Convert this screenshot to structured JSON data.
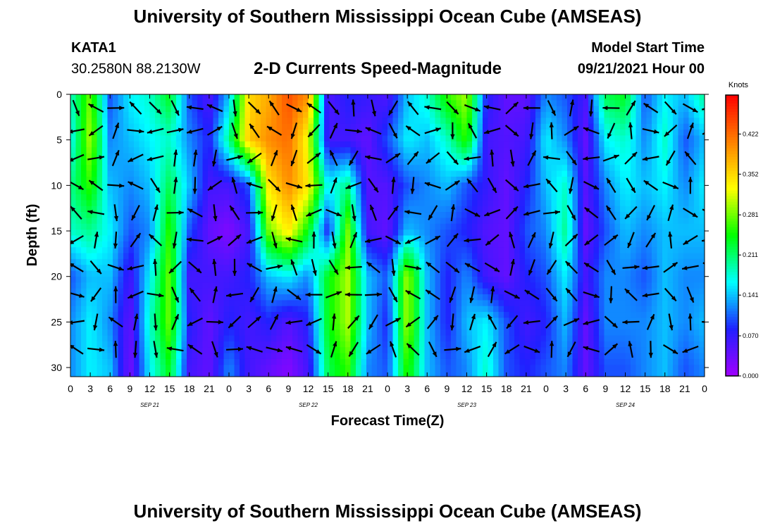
{
  "page": {
    "title_top": "University of Southern Mississippi Ocean Cube (AMSEAS)",
    "title_bottom": "University of Southern Mississippi Ocean Cube (AMSEAS)",
    "station": "KATA1",
    "coords": "30.2580N  88.2130W",
    "chart_title": "2-D Currents Speed-Magnitude",
    "model_start_label": "Model Start Time",
    "model_start_value": "09/21/2021 Hour 00"
  },
  "chart_data": {
    "type": "heatmap",
    "title": "2-D Currents Speed-Magnitude",
    "xlabel": "Forecast Time(Z)",
    "ylabel": "Depth (ft)",
    "x_ticks": [
      "0",
      "3",
      "6",
      "9",
      "12",
      "15",
      "18",
      "21",
      "0",
      "3",
      "6",
      "9",
      "12",
      "15",
      "18",
      "21",
      "0",
      "3",
      "6",
      "9",
      "12",
      "15",
      "18",
      "21",
      "0",
      "3",
      "6",
      "9",
      "12",
      "15",
      "18",
      "21",
      "0"
    ],
    "x_range_hours": [
      0,
      96
    ],
    "date_labels": [
      {
        "label": "SEP 21",
        "hour": 12
      },
      {
        "label": "SEP 22",
        "hour": 36
      },
      {
        "label": "SEP 23",
        "hour": 60
      },
      {
        "label": "SEP 24",
        "hour": 84
      }
    ],
    "y_ticks": [
      "0",
      "5",
      "10",
      "15",
      "20",
      "25",
      "30"
    ],
    "y_range_ft": [
      0,
      31
    ],
    "colorbar": {
      "unit": "Knots",
      "tick_labels": [
        "0.422",
        "0.352",
        "0.281",
        "0.211",
        "0.141",
        "0.070",
        "0.000"
      ],
      "range": [
        0,
        0.49
      ],
      "colors": [
        "#a000ff",
        "#2020ff",
        "#00ffff",
        "#00ff00",
        "#ffff00",
        "#ff8000",
        "#ff0000"
      ]
    },
    "speed_knots": {
      "times_hours": [
        0,
        3,
        6,
        9,
        12,
        15,
        18,
        21,
        24,
        27,
        30,
        33,
        36,
        39,
        42,
        45,
        48,
        51,
        54,
        57,
        60,
        63,
        66,
        69,
        72,
        75,
        78,
        81,
        84,
        87,
        90,
        93,
        96
      ],
      "depths_ft": [
        0,
        5,
        10,
        15,
        20,
        25,
        30
      ],
      "grid": [
        [
          0.18,
          0.28,
          0.1,
          0.16,
          0.18,
          0.24,
          0.1,
          0.05,
          0.14,
          0.35,
          0.38,
          0.44,
          0.4,
          0.05,
          0.08,
          0.07,
          0.05,
          0.14,
          0.18,
          0.26,
          0.3,
          0.08,
          0.04,
          0.04,
          0.12,
          0.1,
          0.06,
          0.22,
          0.24,
          0.1,
          0.16,
          0.14,
          0.2
        ],
        [
          0.16,
          0.3,
          0.12,
          0.14,
          0.16,
          0.18,
          0.12,
          0.08,
          0.2,
          0.36,
          0.4,
          0.42,
          0.32,
          0.06,
          0.06,
          0.04,
          0.1,
          0.16,
          0.14,
          0.18,
          0.26,
          0.06,
          0.05,
          0.06,
          0.16,
          0.12,
          0.04,
          0.16,
          0.18,
          0.12,
          0.18,
          0.1,
          0.14
        ],
        [
          0.2,
          0.26,
          0.14,
          0.12,
          0.14,
          0.22,
          0.14,
          0.06,
          0.06,
          0.1,
          0.34,
          0.4,
          0.34,
          0.16,
          0.2,
          0.05,
          0.05,
          0.1,
          0.12,
          0.14,
          0.1,
          0.07,
          0.04,
          0.08,
          0.14,
          0.18,
          0.05,
          0.12,
          0.16,
          0.14,
          0.16,
          0.12,
          0.16
        ],
        [
          0.18,
          0.2,
          0.16,
          0.1,
          0.12,
          0.26,
          0.1,
          0.04,
          0.02,
          0.06,
          0.28,
          0.34,
          0.24,
          0.08,
          0.28,
          0.06,
          0.04,
          0.14,
          0.12,
          0.1,
          0.08,
          0.05,
          0.04,
          0.1,
          0.12,
          0.2,
          0.04,
          0.1,
          0.14,
          0.12,
          0.14,
          0.14,
          0.14
        ],
        [
          0.1,
          0.14,
          0.14,
          0.06,
          0.16,
          0.28,
          0.06,
          0.06,
          0.06,
          0.08,
          0.14,
          0.16,
          0.12,
          0.24,
          0.3,
          0.14,
          0.1,
          0.3,
          0.14,
          0.08,
          0.12,
          0.06,
          0.04,
          0.08,
          0.1,
          0.16,
          0.06,
          0.12,
          0.12,
          0.1,
          0.14,
          0.12,
          0.12
        ],
        [
          0.12,
          0.16,
          0.12,
          0.04,
          0.18,
          0.28,
          0.08,
          0.04,
          0.08,
          0.06,
          0.08,
          0.05,
          0.08,
          0.24,
          0.3,
          0.14,
          0.08,
          0.3,
          0.14,
          0.08,
          0.14,
          0.16,
          0.1,
          0.06,
          0.08,
          0.14,
          0.04,
          0.12,
          0.12,
          0.12,
          0.14,
          0.12,
          0.14
        ],
        [
          0.12,
          0.16,
          0.14,
          0.03,
          0.16,
          0.24,
          0.06,
          0.04,
          0.12,
          0.06,
          0.04,
          0.02,
          0.06,
          0.22,
          0.26,
          0.12,
          0.1,
          0.26,
          0.14,
          0.1,
          0.12,
          0.18,
          0.1,
          0.08,
          0.1,
          0.12,
          0.04,
          0.1,
          0.1,
          0.12,
          0.14,
          0.1,
          0.12
        ]
      ]
    }
  }
}
